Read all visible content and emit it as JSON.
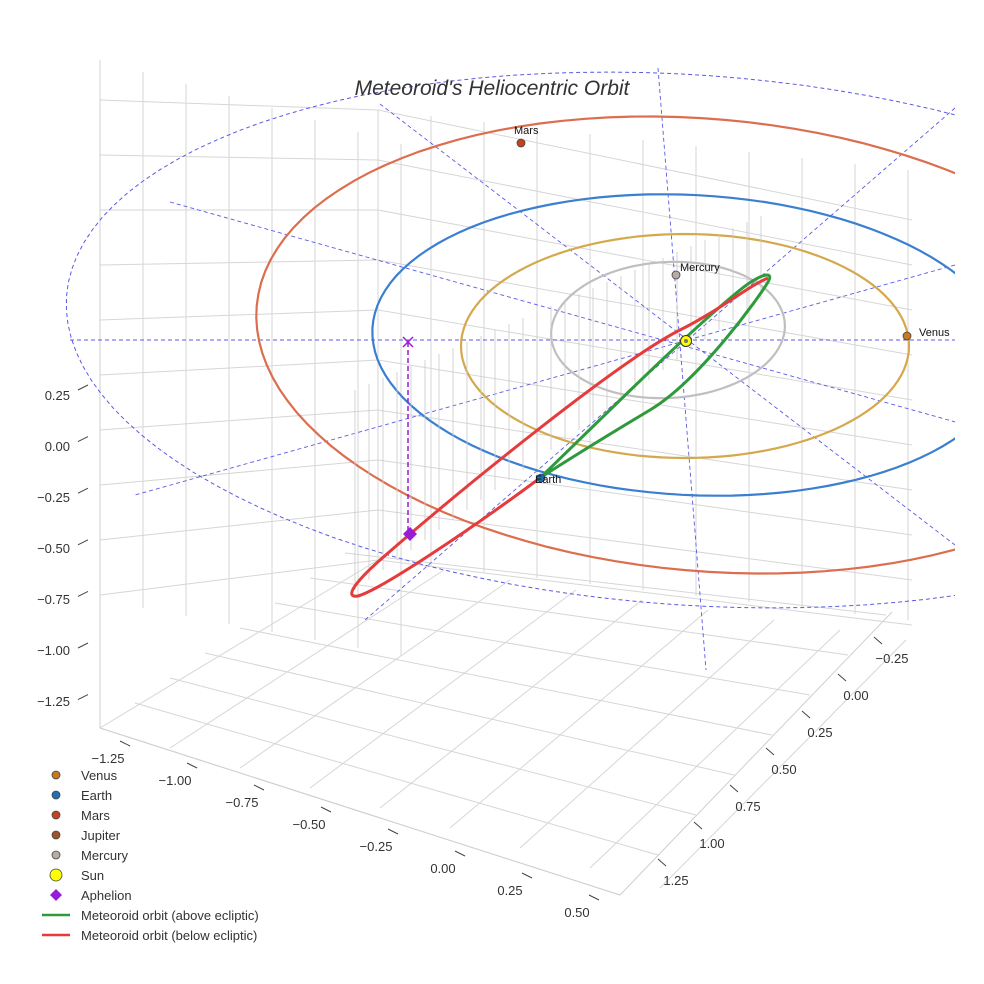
{
  "chart_data": {
    "type": "scatter3d",
    "title": "Meteoroid's Heliocentric Orbit",
    "axes": {
      "x": {
        "ticks": [
          "−1.25",
          "−1.00",
          "−0.75",
          "−0.50",
          "−0.25",
          "0.00",
          "0.25",
          "0.50"
        ]
      },
      "y": {
        "ticks": [
          "−0.25",
          "0.00",
          "0.25",
          "0.50",
          "0.75",
          "1.00",
          "1.25"
        ]
      },
      "z": {
        "ticks": [
          "0.25",
          "0.00",
          "−0.25",
          "−0.50",
          "−0.75",
          "−1.00",
          "−1.25"
        ]
      }
    },
    "planets": [
      {
        "name": "Mercury",
        "label": "Mercury",
        "orbit_color": "#bfbfbf",
        "marker_color": "#b9aca6"
      },
      {
        "name": "Venus",
        "label": "Venus",
        "orbit_color": "#d4a84d",
        "marker_color": "#c9781e"
      },
      {
        "name": "Earth",
        "label": "Earth",
        "orbit_color": "#3a7fd0",
        "marker_color": "#1f6fb4"
      },
      {
        "name": "Mars",
        "label": "Mars",
        "orbit_color": "#dc6e4f",
        "marker_color": "#c2431d"
      }
    ],
    "sun": {
      "name": "Sun",
      "color": "#ffff00"
    },
    "aphelion": {
      "name": "Aphelion",
      "color": "#9a1bd6"
    },
    "meteoroid_orbit": {
      "above": {
        "name": "Meteoroid orbit (above ecliptic)",
        "color": "#2e9a3c"
      },
      "below": {
        "name": "Meteoroid orbit (below ecliptic)",
        "color": "#e63b3b"
      }
    },
    "legend": [
      {
        "name": "Venus",
        "marker": "circle",
        "color": "#c9781e"
      },
      {
        "name": "Earth",
        "marker": "circle",
        "color": "#1f6fb4"
      },
      {
        "name": "Mars",
        "marker": "circle",
        "color": "#c2431d"
      },
      {
        "name": "Jupiter",
        "marker": "circle",
        "color": "#a0522d"
      },
      {
        "name": "Mercury",
        "marker": "circle",
        "color": "#b9aca6"
      },
      {
        "name": "Sun",
        "marker": "circle-large",
        "color": "#ffff00"
      },
      {
        "name": "Aphelion",
        "marker": "diamond",
        "color": "#9a1bd6"
      },
      {
        "name": "Meteoroid orbit (above ecliptic)",
        "marker": "line",
        "color": "#2e9a3c"
      },
      {
        "name": "Meteoroid orbit (below ecliptic)",
        "marker": "line",
        "color": "#e63b3b"
      }
    ],
    "ecliptic_grid_color": "#5a5ae6"
  }
}
